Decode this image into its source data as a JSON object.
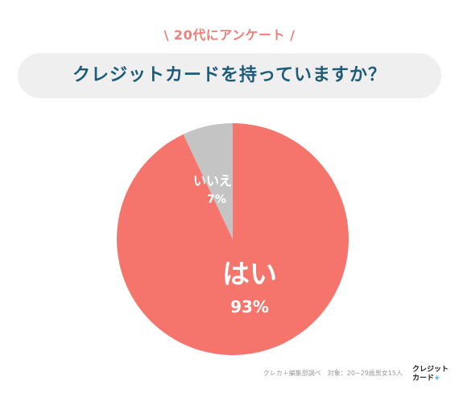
{
  "header": {
    "subtitle": "\\ 20代にアンケート /",
    "title": "クレジットカードを持っていますか？"
  },
  "chart_data": {
    "type": "pie",
    "slices": [
      {
        "label": "はい",
        "value": 93,
        "value_label": "93%",
        "color": "#f5756c"
      },
      {
        "label": "いいえ",
        "value": 7,
        "value_label": "7%",
        "color": "#c4c4c4"
      }
    ]
  },
  "footer": {
    "source": "クレカ＋編集部調べ　対象：20~29歳男女15人",
    "logo_line1": "クレジット",
    "logo_line2": "カード",
    "logo_plus": "+"
  }
}
